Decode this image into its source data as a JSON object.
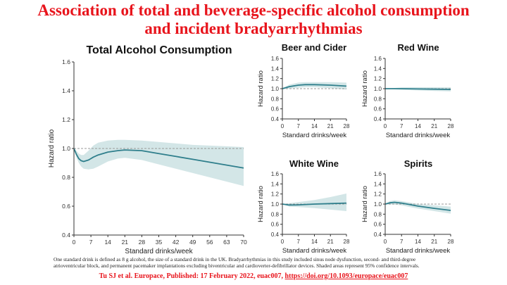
{
  "header": {
    "title_line1": "Association of total and beverage-specific alcohol consumption",
    "title_line2": "and incident bradyarrhythmias"
  },
  "footer": {
    "footnote_line1": "One standard drink is defined as 8 g alcohol, the size of a standard drink in the UK. Bradyarrhythmias in this study included sinus node dysfunction, second- and third-degree",
    "footnote_line2": "atrioventricular block, and permanent pacemaker implantations excluding biventricular and cardioverter-defibrillator devices. Shaded areas represent 95% confidence intervals.",
    "citation_text": "Tu SJ et al. Europace, Published:  17 February 2022, euac007, ",
    "citation_link": "https://doi.org/10.1093/europace/euac007"
  },
  "colors": {
    "line": "#2f7f8c",
    "band": "#d3e6e7",
    "reference": "#9a9a9a",
    "title": "#e8141c"
  },
  "chart_data": [
    {
      "id": "total",
      "type": "line",
      "title": "Total Alcohol Consumption",
      "xlabel": "Standard drinks/week",
      "ylabel": "Hazard ratio",
      "xlim": [
        0,
        70
      ],
      "ylim": [
        0.4,
        1.6
      ],
      "xticks": [
        0,
        7,
        14,
        21,
        28,
        35,
        42,
        49,
        56,
        63,
        70
      ],
      "yticks": [
        0.4,
        0.6,
        0.8,
        1.0,
        1.2,
        1.4,
        1.6
      ],
      "reference": 1.0,
      "series": [
        {
          "name": "Hazard ratio",
          "x": [
            0,
            1,
            2,
            3,
            4,
            6,
            8,
            10,
            14,
            18,
            21,
            28,
            35,
            42,
            49,
            56,
            63,
            70
          ],
          "y": [
            1.0,
            0.96,
            0.93,
            0.915,
            0.91,
            0.92,
            0.94,
            0.955,
            0.975,
            0.985,
            0.99,
            0.985,
            0.965,
            0.945,
            0.925,
            0.905,
            0.885,
            0.865
          ],
          "lower": [
            1.0,
            0.94,
            0.9,
            0.875,
            0.86,
            0.855,
            0.86,
            0.875,
            0.91,
            0.93,
            0.935,
            0.92,
            0.89,
            0.86,
            0.83,
            0.8,
            0.77,
            0.74
          ],
          "upper": [
            1.0,
            0.985,
            0.965,
            0.955,
            0.955,
            0.985,
            1.02,
            1.04,
            1.055,
            1.06,
            1.06,
            1.055,
            1.045,
            1.035,
            1.025,
            1.02,
            1.015,
            1.01
          ]
        }
      ]
    },
    {
      "id": "beer",
      "type": "line",
      "title": "Beer and Cider",
      "xlabel": "Standard drinks/week",
      "ylabel": "Hazard ratio",
      "xlim": [
        0,
        28
      ],
      "ylim": [
        0.4,
        1.6
      ],
      "xticks": [
        0,
        7,
        14,
        21,
        28
      ],
      "yticks": [
        0.4,
        0.6,
        0.8,
        1.0,
        1.2,
        1.4,
        1.6
      ],
      "reference": 1.0,
      "series": [
        {
          "name": "Hazard ratio",
          "x": [
            0,
            3,
            7,
            10,
            14,
            21,
            28
          ],
          "y": [
            1.0,
            1.04,
            1.07,
            1.08,
            1.08,
            1.07,
            1.05
          ],
          "lower": [
            1.0,
            1.0,
            1.02,
            1.03,
            1.03,
            1.01,
            0.98
          ],
          "upper": [
            1.0,
            1.08,
            1.12,
            1.13,
            1.13,
            1.13,
            1.12
          ]
        }
      ]
    },
    {
      "id": "redwine",
      "type": "line",
      "title": "Red Wine",
      "xlabel": "Standard drinks/week",
      "ylabel": "Hazard ratio",
      "xlim": [
        0,
        28
      ],
      "ylim": [
        0.4,
        1.6
      ],
      "xticks": [
        0,
        7,
        14,
        21,
        28
      ],
      "yticks": [
        0.4,
        0.6,
        0.8,
        1.0,
        1.2,
        1.4,
        1.6
      ],
      "reference": 1.0,
      "series": [
        {
          "name": "Hazard ratio",
          "x": [
            0,
            7,
            14,
            21,
            28
          ],
          "y": [
            1.0,
            1.0,
            0.995,
            0.99,
            0.985
          ],
          "lower": [
            1.0,
            0.975,
            0.965,
            0.955,
            0.945
          ],
          "upper": [
            1.0,
            1.025,
            1.03,
            1.03,
            1.03
          ]
        }
      ]
    },
    {
      "id": "whitewine",
      "type": "line",
      "title": "White Wine",
      "xlabel": "Standard drinks/week",
      "ylabel": "Hazard ratio",
      "xlim": [
        0,
        28
      ],
      "ylim": [
        0.4,
        1.6
      ],
      "xticks": [
        0,
        7,
        14,
        21,
        28
      ],
      "yticks": [
        0.4,
        0.6,
        0.8,
        1.0,
        1.2,
        1.4,
        1.6
      ],
      "reference": 1.0,
      "series": [
        {
          "name": "Hazard ratio",
          "x": [
            0,
            3,
            7,
            14,
            21,
            28
          ],
          "y": [
            1.0,
            0.98,
            0.985,
            1.0,
            1.01,
            1.02
          ],
          "lower": [
            1.0,
            0.95,
            0.94,
            0.92,
            0.89,
            0.86
          ],
          "upper": [
            1.0,
            1.02,
            1.04,
            1.08,
            1.14,
            1.21
          ]
        }
      ]
    },
    {
      "id": "spirits",
      "type": "line",
      "title": "Spirits",
      "xlabel": "Standard drinks/week",
      "ylabel": "Hazard ratio",
      "xlim": [
        0,
        28
      ],
      "ylim": [
        0.4,
        1.6
      ],
      "xticks": [
        0,
        7,
        14,
        21,
        28
      ],
      "yticks": [
        0.4,
        0.6,
        0.8,
        1.0,
        1.2,
        1.4,
        1.6
      ],
      "reference": 1.0,
      "series": [
        {
          "name": "Hazard ratio",
          "x": [
            0,
            2,
            4,
            7,
            10,
            14,
            21,
            28
          ],
          "y": [
            1.0,
            1.025,
            1.035,
            1.02,
            0.995,
            0.96,
            0.915,
            0.875
          ],
          "lower": [
            1.0,
            0.99,
            0.99,
            0.975,
            0.945,
            0.91,
            0.86,
            0.81
          ],
          "upper": [
            1.0,
            1.06,
            1.075,
            1.06,
            1.035,
            1.0,
            0.975,
            0.95
          ]
        }
      ]
    }
  ]
}
